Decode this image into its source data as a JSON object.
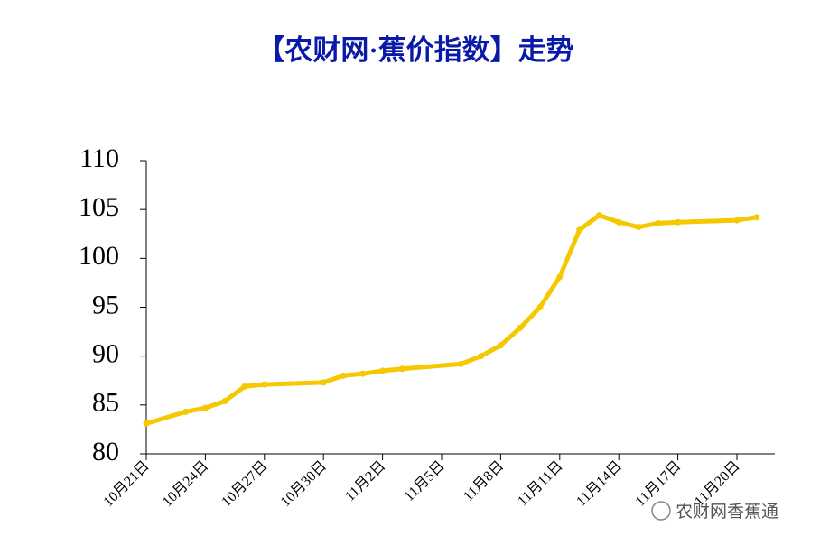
{
  "chart_data": {
    "type": "line",
    "title": "【农财网·蕉价指数】走势",
    "x": [
      "10月21日",
      "10月23日",
      "10月24日",
      "10月25日",
      "10月26日",
      "10月27日",
      "10月30日",
      "10月31日",
      "11月1日",
      "11月2日",
      "11月3日",
      "11月6日",
      "11月7日",
      "11月8日",
      "11月9日",
      "11月10日",
      "11月11日",
      "11月12日",
      "11月13日",
      "11月14日",
      "11月15日",
      "11月16日",
      "11月17日",
      "11月20日",
      "11月21日"
    ],
    "series": [
      {
        "name": "蕉价指数",
        "color": "#f5c800",
        "values": [
          83.1,
          84.3,
          84.7,
          85.4,
          86.9,
          87.1,
          87.3,
          88.0,
          88.2,
          88.5,
          88.7,
          89.2,
          90.0,
          91.1,
          92.9,
          95.0,
          98.1,
          102.9,
          104.4,
          103.7,
          103.2,
          103.6,
          103.7,
          103.9,
          104.2
        ]
      }
    ],
    "xticks": [
      "10月21日",
      "10月24日",
      "10月27日",
      "10月30日",
      "11月2日",
      "11月5日",
      "11月8日",
      "11月11日",
      "11月14日",
      "11月17日",
      "11月20日"
    ],
    "ylim": [
      80,
      110
    ],
    "yticks": [
      80,
      85,
      90,
      95,
      100,
      105,
      110
    ],
    "grid": false
  },
  "watermark": "农财网香蕉通"
}
